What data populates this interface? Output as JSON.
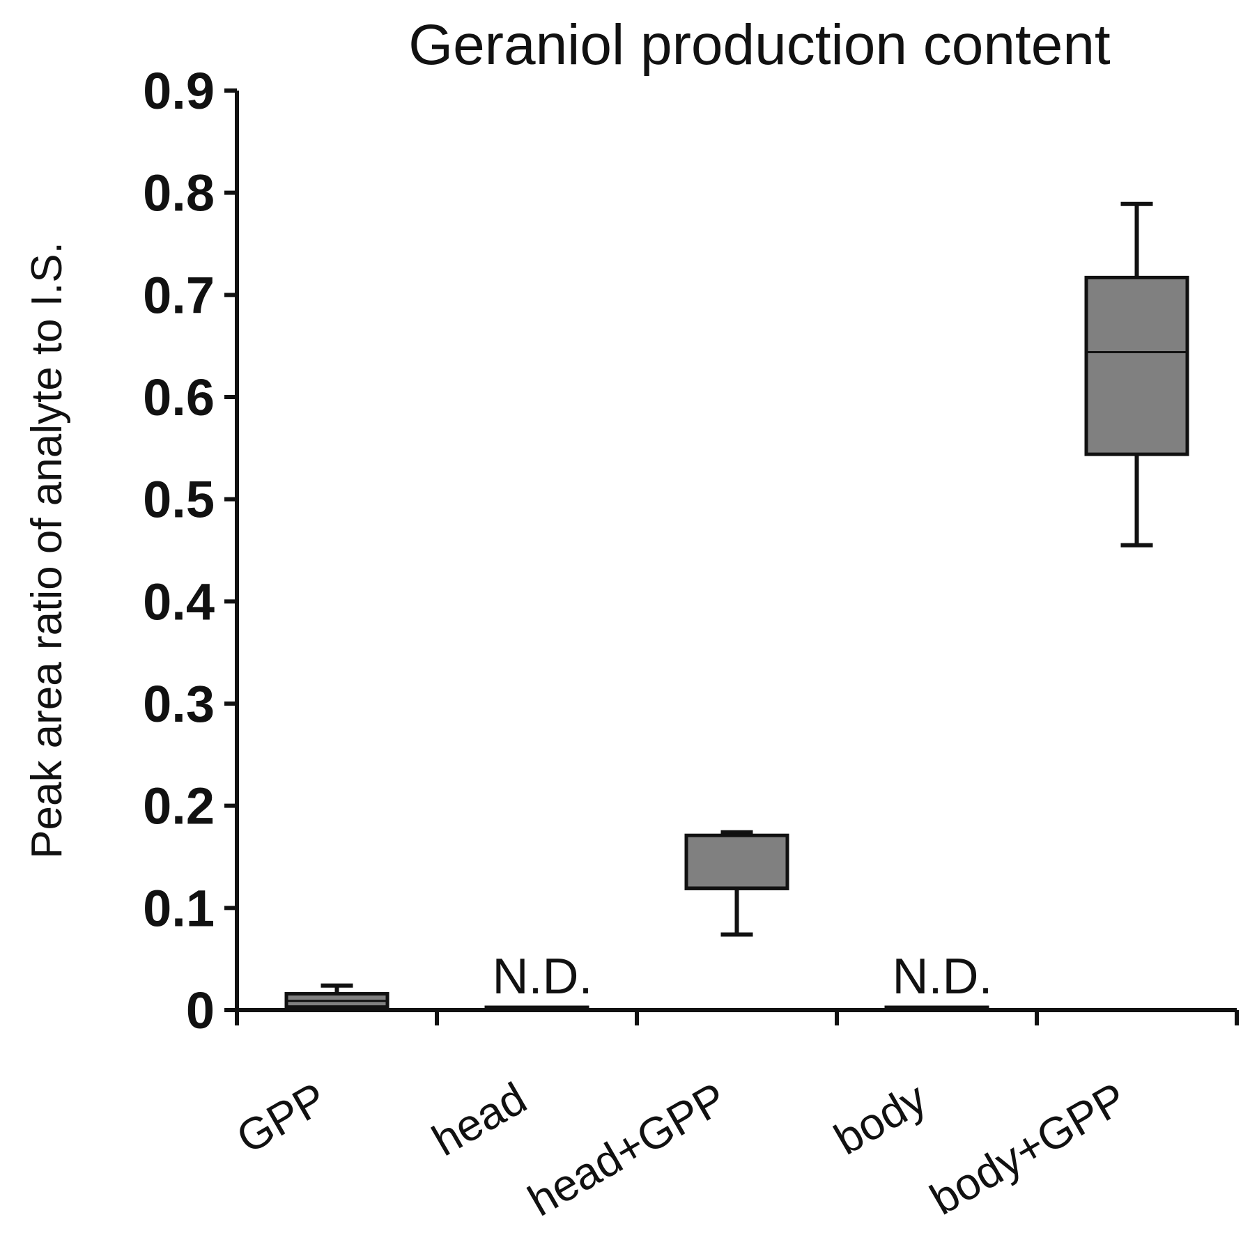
{
  "chart_data": {
    "type": "box",
    "title": "Geraniol production content",
    "xlabel": "",
    "ylabel": "Peak area ratio of analyte to I.S.",
    "ylim": [
      0,
      0.9
    ],
    "yticks": [
      0,
      0.1,
      0.2,
      0.3,
      0.4,
      0.5,
      0.6,
      0.7,
      0.8,
      0.9
    ],
    "ytick_labels": [
      "0",
      "0.1",
      "0.2",
      "0.3",
      "0.4",
      "0.5",
      "0.6",
      "0.7",
      "0.8",
      "0.9"
    ],
    "categories": [
      "GPP",
      "head",
      "head+GPP",
      "body",
      "body+GPP"
    ],
    "boxes": [
      {
        "category": "GPP",
        "min": 0.001,
        "q1": 0.003,
        "median": 0.009,
        "q3": 0.016,
        "max": 0.024,
        "annotation": ""
      },
      {
        "category": "head",
        "min": 0,
        "q1": 0,
        "median": 0,
        "q3": 0,
        "max": 0,
        "annotation": "N.D."
      },
      {
        "category": "head+GPP",
        "min": 0.074,
        "q1": 0.119,
        "median": 0.12,
        "q3": 0.171,
        "max": 0.174,
        "annotation": ""
      },
      {
        "category": "body",
        "min": 0,
        "q1": 0,
        "median": 0,
        "q3": 0,
        "max": 0,
        "annotation": "N.D."
      },
      {
        "category": "body+GPP",
        "min": 0.455,
        "q1": 0.544,
        "median": 0.644,
        "q3": 0.717,
        "max": 0.789,
        "annotation": ""
      }
    ],
    "box_color": "#808080",
    "grid": false,
    "legend": "none"
  }
}
